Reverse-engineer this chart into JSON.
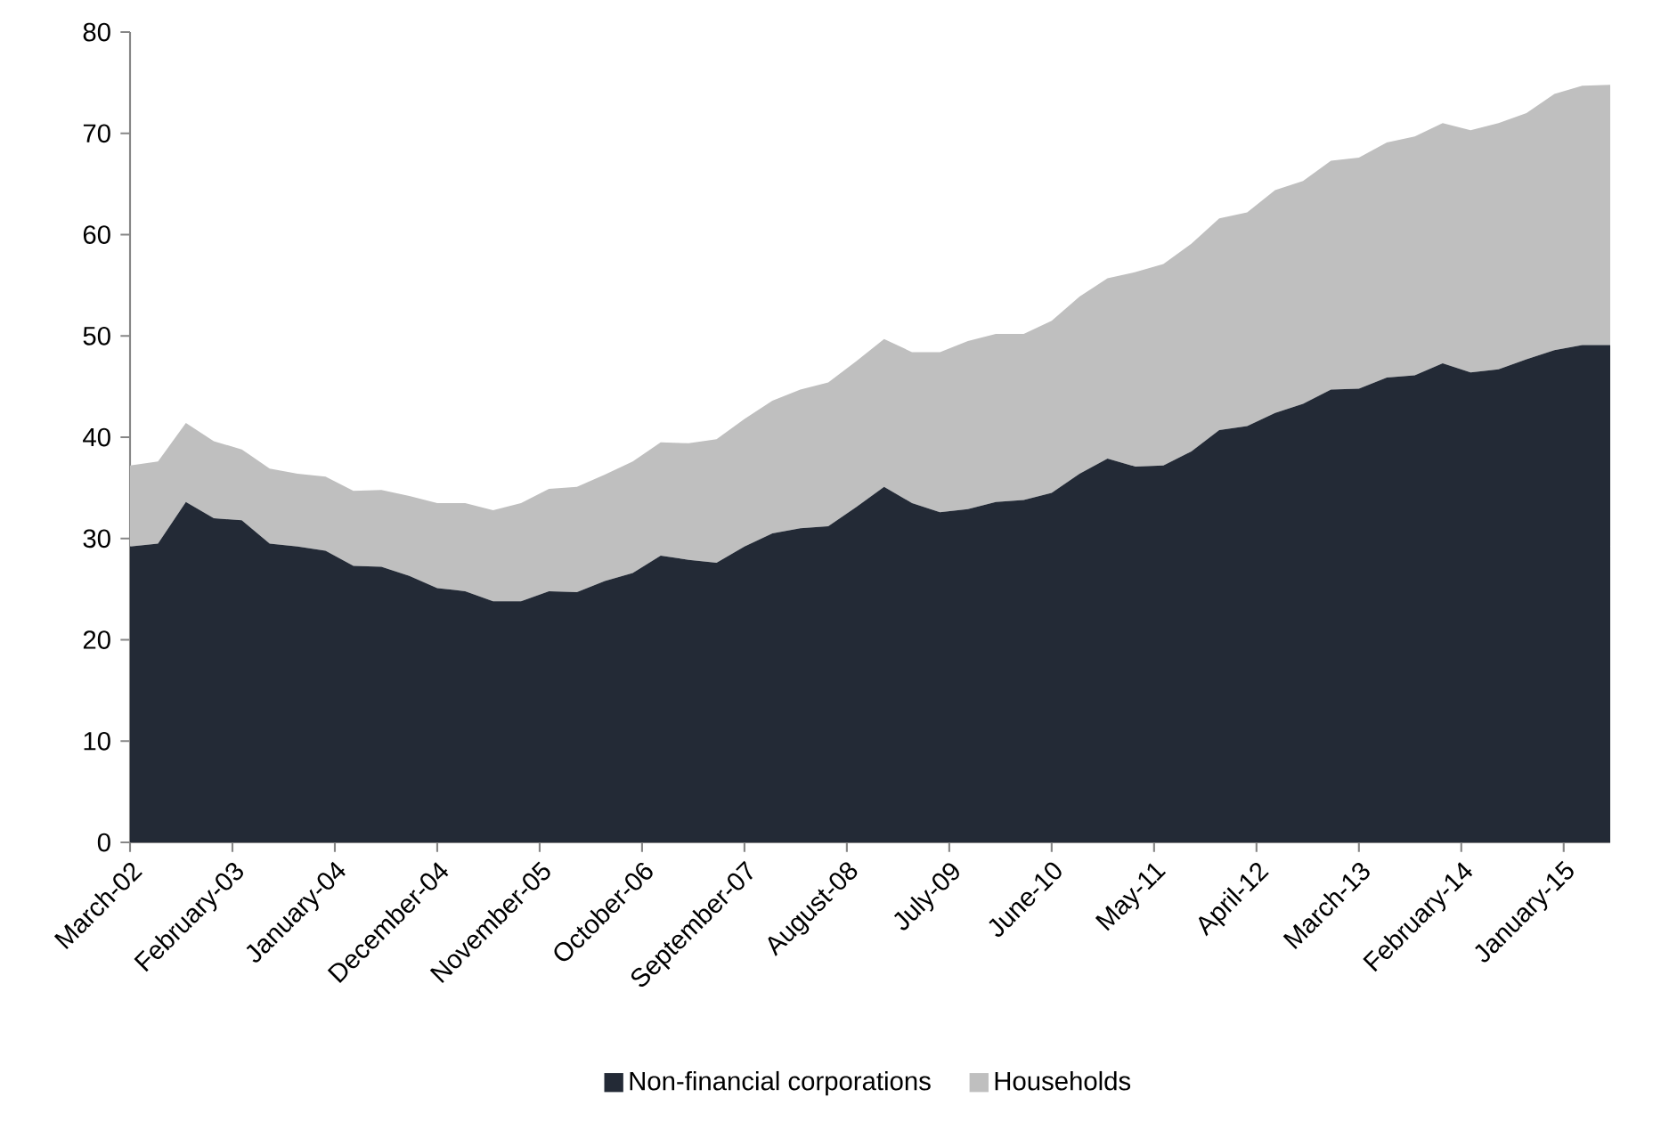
{
  "chart_data": {
    "type": "area",
    "stacked": true,
    "legend": "bottom",
    "x": [
      "2002-03",
      "2002-06",
      "2002-09",
      "2002-12",
      "2003-03",
      "2003-06",
      "2003-09",
      "2003-12",
      "2004-03",
      "2004-06",
      "2004-09",
      "2004-12",
      "2005-03",
      "2005-06",
      "2005-09",
      "2005-12",
      "2006-03",
      "2006-06",
      "2006-09",
      "2006-12",
      "2007-03",
      "2007-06",
      "2007-09",
      "2007-12",
      "2008-03",
      "2008-06",
      "2008-09",
      "2008-12",
      "2009-03",
      "2009-06",
      "2009-09",
      "2009-12",
      "2010-03",
      "2010-06",
      "2010-09",
      "2010-12",
      "2011-03",
      "2011-06",
      "2011-09",
      "2011-12",
      "2012-03",
      "2012-06",
      "2012-09",
      "2012-12",
      "2013-03",
      "2013-06",
      "2013-09",
      "2013-12",
      "2014-03",
      "2014-06",
      "2014-09",
      "2014-12",
      "2015-03",
      "2015-06"
    ],
    "xlim": [
      "2002-03",
      "2015-06"
    ],
    "xticks": [
      {
        "value": "2002-03",
        "label": "March-02"
      },
      {
        "value": "2003-02",
        "label": "February-03"
      },
      {
        "value": "2004-01",
        "label": "January-04"
      },
      {
        "value": "2004-12",
        "label": "December-04"
      },
      {
        "value": "2005-11",
        "label": "November-05"
      },
      {
        "value": "2006-10",
        "label": "October-06"
      },
      {
        "value": "2007-09",
        "label": "September-07"
      },
      {
        "value": "2008-08",
        "label": "August-08"
      },
      {
        "value": "2009-07",
        "label": "July-09"
      },
      {
        "value": "2010-06",
        "label": "June-10"
      },
      {
        "value": "2011-05",
        "label": "May-11"
      },
      {
        "value": "2012-04",
        "label": "April-12"
      },
      {
        "value": "2013-03",
        "label": "March-13"
      },
      {
        "value": "2014-02",
        "label": "February-14"
      },
      {
        "value": "2015-01",
        "label": "January-15"
      }
    ],
    "ylim": [
      0,
      80
    ],
    "yticks": [
      0,
      10,
      20,
      30,
      40,
      50,
      60,
      70,
      80
    ],
    "series": [
      {
        "name": "Non-financial corporations",
        "color": "#232a36",
        "values": [
          29.2,
          29.5,
          33.6,
          32.0,
          31.8,
          29.5,
          29.2,
          28.8,
          27.3,
          27.2,
          26.3,
          25.1,
          24.8,
          23.8,
          23.8,
          24.8,
          24.7,
          25.8,
          26.6,
          28.3,
          27.9,
          27.6,
          29.2,
          30.5,
          31.0,
          31.2,
          33.1,
          35.1,
          33.5,
          32.6,
          32.9,
          33.6,
          33.8,
          34.5,
          36.4,
          37.9,
          37.1,
          37.2,
          38.6,
          40.7,
          41.1,
          42.4,
          43.3,
          44.7,
          44.8,
          45.9,
          46.1,
          47.3,
          46.4,
          46.7,
          47.7,
          48.6,
          49.1,
          49.1
        ]
      },
      {
        "name": "Households",
        "color": "#bfbfbf",
        "values": [
          8.0,
          8.1,
          7.8,
          7.6,
          7.0,
          7.4,
          7.2,
          7.3,
          7.4,
          7.6,
          7.9,
          8.4,
          8.7,
          9.0,
          9.7,
          10.1,
          10.4,
          10.5,
          11.0,
          11.2,
          11.5,
          12.2,
          12.6,
          13.1,
          13.7,
          14.2,
          14.4,
          14.6,
          14.9,
          15.8,
          16.6,
          16.6,
          16.4,
          17.0,
          17.5,
          17.8,
          19.2,
          19.9,
          20.5,
          20.9,
          21.1,
          22.0,
          22.0,
          22.6,
          22.8,
          23.2,
          23.6,
          23.7,
          23.9,
          24.3,
          24.3,
          25.3,
          25.6,
          25.7
        ]
      }
    ]
  }
}
